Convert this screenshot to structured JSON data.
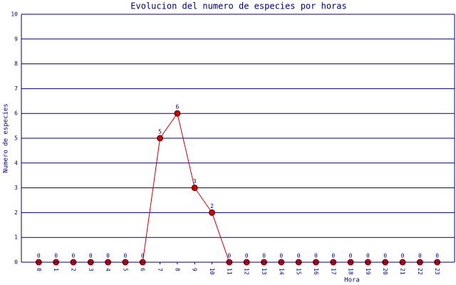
{
  "chart_data": {
    "type": "line",
    "title": "Evolucion del numero de especies por horas",
    "x_label": "Hora",
    "y_label": "Numero de especies",
    "categories": [
      "0",
      "1",
      "2",
      "3",
      "4",
      "5",
      "6",
      "7",
      "8",
      "9",
      "10",
      "11",
      "12",
      "13",
      "14",
      "15",
      "16",
      "17",
      "18",
      "19",
      "20",
      "21",
      "22",
      "23"
    ],
    "series": [
      {
        "color": "#cc0000",
        "values": [
          0,
          0,
          0,
          0,
          0,
          0,
          0,
          5,
          6,
          3,
          2,
          0,
          0,
          0,
          0,
          0,
          0,
          0,
          0,
          0,
          0,
          0,
          0,
          0
        ]
      }
    ],
    "ylim": [
      0,
      10
    ],
    "yticks": [
      0,
      1,
      2,
      3,
      4,
      5,
      6,
      7,
      8,
      9,
      10
    ],
    "grid": true
  }
}
